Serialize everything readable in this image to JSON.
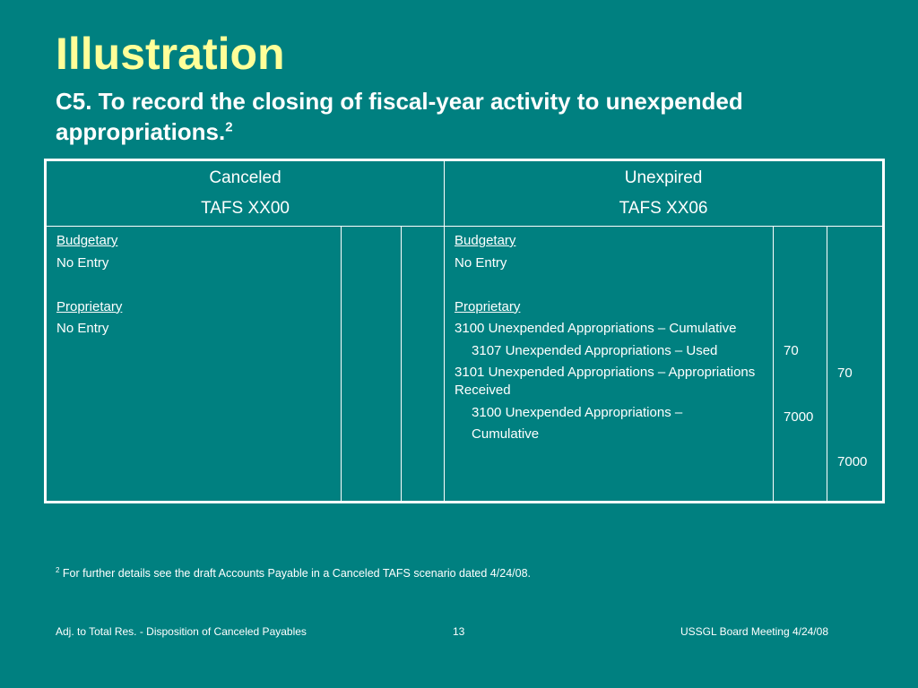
{
  "slide": {
    "title": "Illustration",
    "subtitle": "C5. To record the closing of fiscal-year activity to unexpended appropriations.",
    "subtitle_superscript": "2"
  },
  "table": {
    "canceled": {
      "header_line1": "Canceled",
      "header_line2": "TAFS XX00",
      "budgetary_label": "Budgetary",
      "budgetary_entry": "No Entry",
      "proprietary_label": "Proprietary",
      "proprietary_entry": "No Entry"
    },
    "unexpired": {
      "header_line1": "Unexpired",
      "header_line2": "TAFS XX06",
      "budgetary_label": "Budgetary",
      "budgetary_entry": "No Entry",
      "proprietary_label": "Proprietary",
      "entries": [
        "3100 Unexpended Appropriations – Cumulative",
        "3107 Unexpended Appropriations –  Used",
        "3101 Unexpended Appropriations – Appropriations Received",
        "3100 Unexpended Appropriations –",
        "Cumulative"
      ],
      "debits": [
        "70",
        "7000"
      ],
      "credits": [
        "70",
        "7000"
      ]
    }
  },
  "footnote": {
    "marker": "2",
    "text": " For further details see the draft Accounts Payable in a Canceled TAFS scenario dated 4/24/08."
  },
  "footer": {
    "left": "Adj. to Total Res. - Disposition of Canceled Payables",
    "center": "13",
    "right": "USSGL Board Meeting 4/24/08"
  },
  "colors": {
    "background": "#008080",
    "title": "#ffff99",
    "text": "#ffffff"
  }
}
